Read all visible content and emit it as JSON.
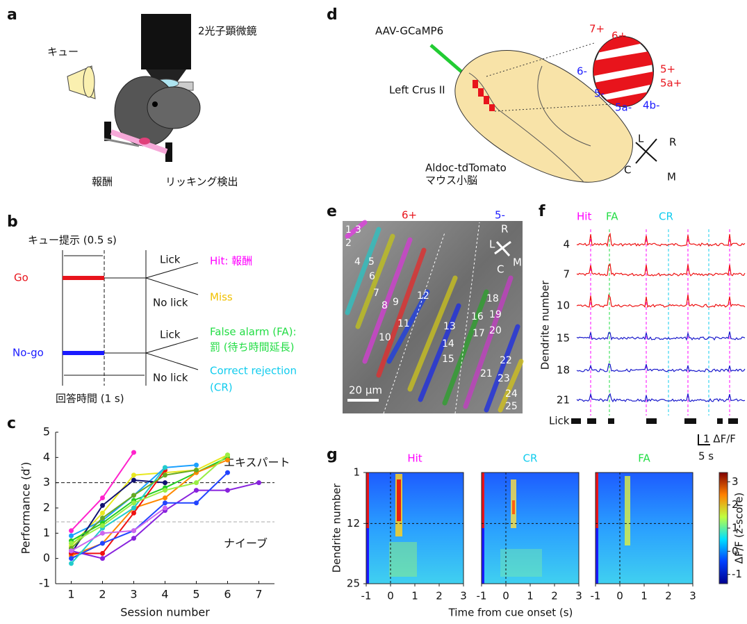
{
  "panels": {
    "a": {
      "label": "a",
      "microscope": "2光子顕微鏡",
      "cue": "キュー",
      "reward": "報酬",
      "lick_detection": "リッキング検出"
    },
    "b": {
      "label": "b",
      "cue_presentation": "キュー提示 (0.5 s)",
      "go": "Go",
      "nogo": "No-go",
      "lick_go": "Lick",
      "nolick_go": "No lick",
      "lick_nogo": "Lick",
      "nolick_nogo": "No lick",
      "hit": "Hit: 報酬",
      "miss": "Miss",
      "fa_1": "False alarm (FA):",
      "fa_2": "罰 (待ち時間延長)",
      "cr_1": "Correct rejection",
      "cr_2": "(CR)",
      "response_time": "回答時間 (1 s)"
    },
    "d": {
      "label": "d",
      "virus": "AAV-GCaMP6",
      "region": "Left Crus II",
      "mouse_1": "Aldoc-tdTomato",
      "mouse_2": "マウス小脳",
      "zones_plus": [
        "7+",
        "6+",
        "5+",
        "5a+"
      ],
      "zones_minus": [
        "6-",
        "5-",
        "5a-",
        "4b-"
      ],
      "compass": [
        "L",
        "R",
        "C",
        "M"
      ]
    },
    "e": {
      "label": "e",
      "zone_plus": "6+",
      "zone_minus": "5-",
      "compass": [
        "R",
        "L",
        "C",
        "M"
      ],
      "scale": "20 μm",
      "dendrites": [
        "1",
        "2",
        "3",
        "4",
        "5",
        "6",
        "7",
        "8",
        "9",
        "10",
        "11",
        "12",
        "13",
        "14",
        "15",
        "16",
        "17",
        "18",
        "19",
        "20",
        "21",
        "22",
        "23",
        "24",
        "25"
      ]
    },
    "f": {
      "label": "f",
      "hit": "Hit",
      "fa": "FA",
      "cr": "CR",
      "dendrites": [
        "4",
        "7",
        "10",
        "15",
        "18",
        "21"
      ],
      "ylabel": "Dendrite number",
      "lick": "Lick",
      "scale_y": "1 ΔF/F",
      "scale_x": "5 s"
    },
    "g": {
      "label": "g",
      "titles": [
        "Hit",
        "CR",
        "FA"
      ],
      "xlabel": "Time from cue onset (s)",
      "ylabel": "Dendrite number",
      "xlim": [
        -1,
        3
      ],
      "xticks": [
        -1,
        0,
        1,
        2,
        3
      ],
      "ylim": [
        1,
        25
      ],
      "yticks": [
        1,
        12,
        25
      ],
      "colorbar_label": "ΔF/F (z-score)",
      "colorbar_lim": [
        -1.4,
        3.4
      ],
      "colorbar_ticks": [
        -1,
        0,
        1,
        2,
        3
      ]
    }
  },
  "chart_data": {
    "type": "line",
    "label": "c",
    "xlabel": "Session number",
    "ylabel": "Performance (d′)",
    "xlim": [
      0.5,
      7.5
    ],
    "ylim": [
      -1,
      5
    ],
    "xticks": [
      1,
      2,
      3,
      4,
      5,
      6,
      7
    ],
    "yticks": [
      -1,
      0,
      1,
      2,
      3,
      4,
      5
    ],
    "reference_lines": [
      {
        "value": 3,
        "label": "エキスパート",
        "color": "#111111"
      },
      {
        "value": 1.45,
        "label": "ナイーブ",
        "color": "#aaaaaa"
      }
    ],
    "series": [
      {
        "color": "#ff22cc",
        "x": [
          1,
          2,
          3
        ],
        "values": [
          1.1,
          2.4,
          4.2
        ]
      },
      {
        "color": "#e8e820",
        "x": [
          1,
          2,
          3,
          4,
          5,
          6
        ],
        "values": [
          0.5,
          1.8,
          3.3,
          3.4,
          3.5,
          4.1
        ]
      },
      {
        "color": "#1aa0ff",
        "x": [
          1,
          2,
          3,
          4,
          5
        ],
        "values": [
          0.9,
          1.5,
          2.5,
          3.6,
          3.7
        ]
      },
      {
        "color": "#101070",
        "x": [
          1,
          2,
          3,
          4
        ],
        "values": [
          0.2,
          2.1,
          3.1,
          3.0
        ]
      },
      {
        "color": "#22cc22",
        "x": [
          1,
          2,
          3,
          4,
          5,
          6
        ],
        "values": [
          0.7,
          1.4,
          2.3,
          2.8,
          3.4,
          4.0
        ]
      },
      {
        "color": "#ff8800",
        "x": [
          1,
          2,
          3,
          4,
          5,
          6
        ],
        "values": [
          0.1,
          0.6,
          2.0,
          2.4,
          3.4,
          3.9
        ]
      },
      {
        "color": "#ee1111",
        "x": [
          1,
          2,
          3,
          4
        ],
        "values": [
          0.2,
          0.2,
          1.8,
          3.5
        ]
      },
      {
        "color": "#8822dd",
        "x": [
          1,
          2,
          3,
          4,
          5,
          6,
          7
        ],
        "values": [
          0.3,
          0.0,
          0.8,
          1.9,
          2.7,
          2.7,
          3.0
        ]
      },
      {
        "color": "#2244ff",
        "x": [
          1,
          2,
          3,
          4,
          5,
          6
        ],
        "values": [
          0.0,
          0.6,
          1.1,
          2.2,
          2.2,
          3.4
        ]
      },
      {
        "color": "#22cccc",
        "x": [
          1,
          2,
          3,
          4
        ],
        "values": [
          -0.2,
          1.2,
          2.0,
          3.6
        ]
      },
      {
        "color": "#66aa22",
        "x": [
          1,
          2,
          3,
          4,
          5
        ],
        "values": [
          0.4,
          1.6,
          2.5,
          3.3,
          3.5
        ]
      },
      {
        "color": "#cc66ee",
        "x": [
          1,
          2,
          3,
          4
        ],
        "values": [
          0.3,
          1.0,
          1.1,
          2.0
        ]
      },
      {
        "color": "#99ee44",
        "x": [
          1,
          2,
          3,
          4,
          5,
          6
        ],
        "values": [
          0.6,
          1.3,
          2.2,
          2.7,
          3.0,
          4.1
        ]
      }
    ]
  }
}
